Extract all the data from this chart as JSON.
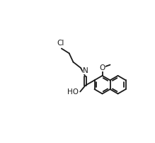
{
  "background_color": "#ffffff",
  "bond_color": "#1a1a1a",
  "text_color": "#1a1a1a",
  "bond_lw": 1.3,
  "font_size": 7.5,
  "ring_r": 0.058,
  "cx_R": 0.76,
  "cy_R": 0.415,
  "chain_angles_deg": [
    118,
    142,
    115,
    148
  ],
  "chain_lens": [
    0.062,
    0.062,
    0.062,
    0.058
  ]
}
